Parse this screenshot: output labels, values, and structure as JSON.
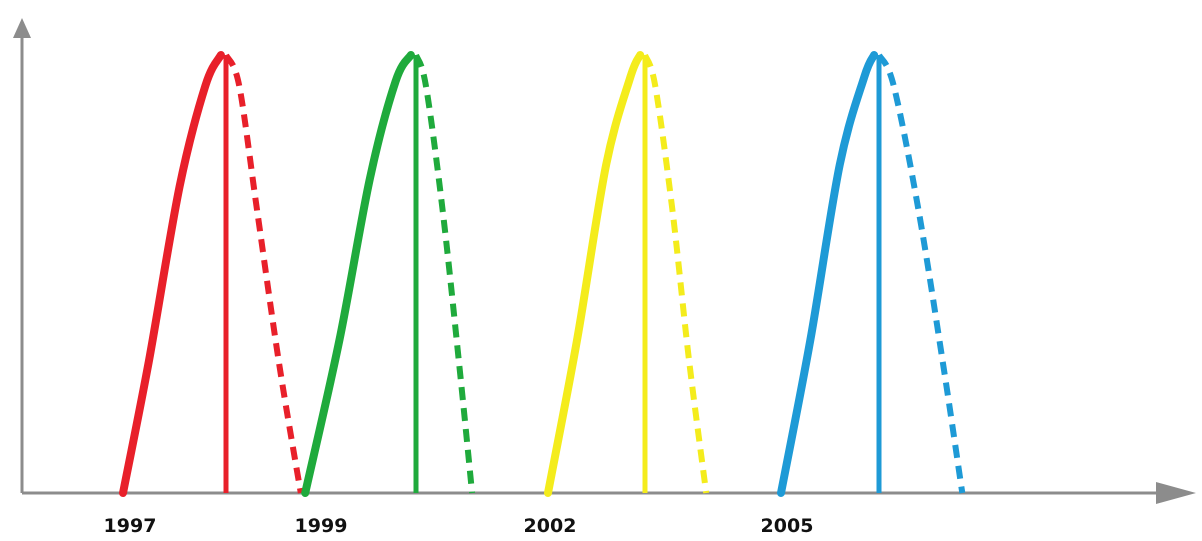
{
  "chart_data": {
    "type": "line",
    "title": "",
    "xlabel": "",
    "ylabel": "",
    "grid": false,
    "legend": "none",
    "axis_color": "#8c8c8c",
    "x_ticks": [
      {
        "label": "1997",
        "value": 1997
      },
      {
        "label": "1999",
        "value": 1999
      },
      {
        "label": "2002",
        "value": 2002
      },
      {
        "label": "2005",
        "value": 2005
      }
    ],
    "y_range": [
      0,
      1
    ],
    "series": [
      {
        "color": "#e8202a",
        "rise": [
          [
            1997.0,
            0.0
          ],
          [
            1997.25,
            0.3
          ],
          [
            1997.55,
            0.7
          ],
          [
            1997.8,
            0.93
          ],
          [
            1997.95,
            1.0
          ]
        ],
        "cutoff": [
          [
            1998.0,
            0.0
          ],
          [
            1998.0,
            1.0
          ]
        ],
        "decline": [
          [
            1998.0,
            1.0
          ],
          [
            1998.15,
            0.93
          ],
          [
            1998.35,
            0.65
          ],
          [
            1998.6,
            0.3
          ],
          [
            1998.85,
            0.0
          ]
        ]
      },
      {
        "color": "#1faa3c",
        "rise": [
          [
            1998.9,
            0.0
          ],
          [
            1999.25,
            0.35
          ],
          [
            1999.55,
            0.72
          ],
          [
            1999.8,
            0.94
          ],
          [
            1999.95,
            1.0
          ]
        ],
        "cutoff": [
          [
            2000.0,
            0.0
          ],
          [
            2000.0,
            1.0
          ]
        ],
        "decline": [
          [
            2000.0,
            1.0
          ],
          [
            2000.15,
            0.93
          ],
          [
            2000.4,
            0.65
          ],
          [
            2000.65,
            0.3
          ],
          [
            2000.85,
            0.0
          ]
        ]
      },
      {
        "color": "#f4ec1c",
        "rise": [
          [
            2002.0,
            0.0
          ],
          [
            2002.3,
            0.35
          ],
          [
            2002.6,
            0.75
          ],
          [
            2002.85,
            0.95
          ],
          [
            2002.95,
            1.0
          ]
        ],
        "cutoff": [
          [
            2003.0,
            0.0
          ],
          [
            2003.0,
            1.0
          ]
        ],
        "decline": [
          [
            2003.0,
            1.0
          ],
          [
            2003.15,
            0.93
          ],
          [
            2003.4,
            0.65
          ],
          [
            2003.65,
            0.3
          ],
          [
            2003.9,
            0.0
          ]
        ]
      },
      {
        "color": "#1e9ad6",
        "rise": [
          [
            2005.0,
            0.0
          ],
          [
            2005.3,
            0.35
          ],
          [
            2005.6,
            0.75
          ],
          [
            2005.85,
            0.95
          ],
          [
            2005.95,
            1.0
          ]
        ],
        "cutoff": [
          [
            2006.0,
            0.0
          ],
          [
            2006.0,
            1.0
          ]
        ],
        "decline": [
          [
            2006.0,
            1.0
          ],
          [
            2006.15,
            0.93
          ],
          [
            2006.4,
            0.65
          ],
          [
            2006.65,
            0.3
          ],
          [
            2006.85,
            0.0
          ]
        ]
      }
    ]
  }
}
